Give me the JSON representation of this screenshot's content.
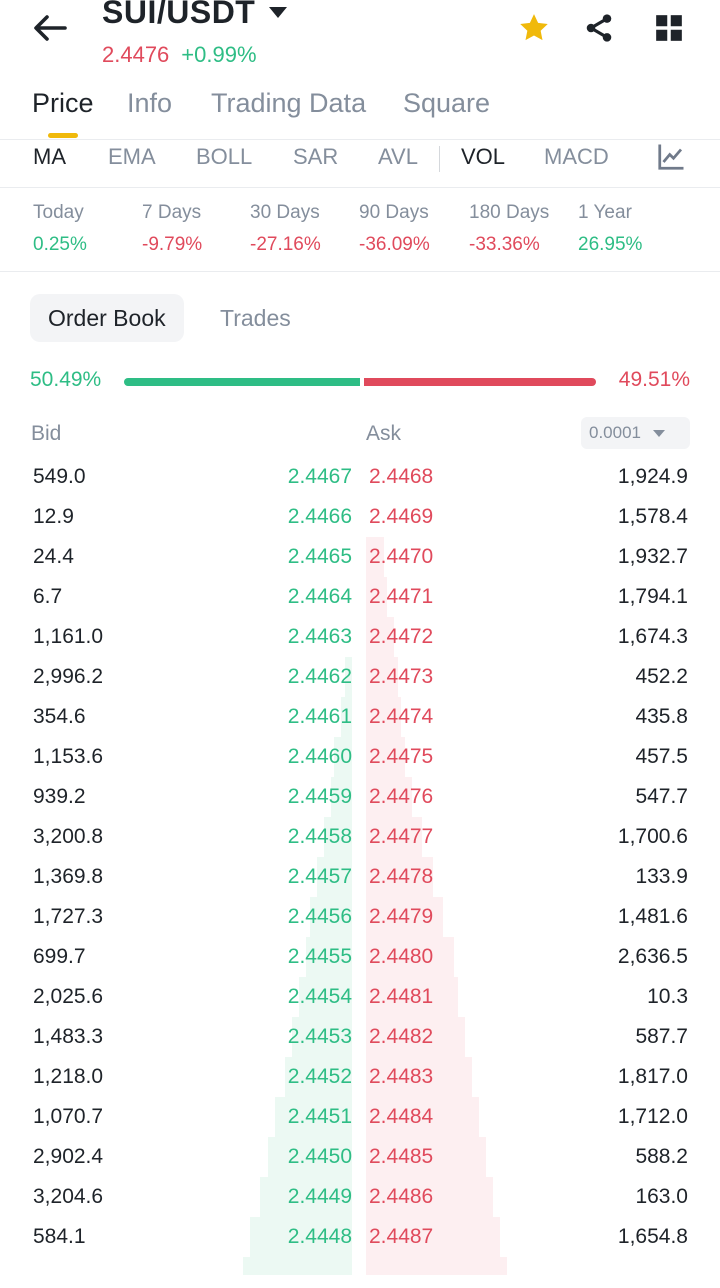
{
  "header": {
    "symbol": "SUI/USDT",
    "last_price": "2.4476",
    "change": "+0.99%",
    "icons": [
      "back-arrow-icon",
      "dropdown-caret-icon",
      "star-icon",
      "share-icon",
      "grid-menu-icon"
    ],
    "colors": {
      "up": "#2ebd85",
      "down": "#e04a5c",
      "accent": "#f0b90b"
    }
  },
  "main_tabs": [
    "Price",
    "Info",
    "Trading Data",
    "Square"
  ],
  "indicators": [
    "MA",
    "EMA",
    "BOLL",
    "SAR",
    "AVL",
    "VOL",
    "MACD"
  ],
  "performance": [
    {
      "label": "Today",
      "value": "0.25%",
      "dir": "up"
    },
    {
      "label": "7 Days",
      "value": "-9.79%",
      "dir": "down"
    },
    {
      "label": "30 Days",
      "value": "-27.16%",
      "dir": "down"
    },
    {
      "label": "90 Days",
      "value": "-36.09%",
      "dir": "down"
    },
    {
      "label": "180 Days",
      "value": "-33.36%",
      "dir": "down"
    },
    {
      "label": "1 Year",
      "value": "26.95%",
      "dir": "up"
    }
  ],
  "sub_tabs": [
    "Order Book",
    "Trades"
  ],
  "ratio": {
    "buy": "50.49%",
    "sell": "49.51%",
    "buy_fraction": 0.5049
  },
  "orderbook": {
    "bid_label": "Bid",
    "ask_label": "Ask",
    "precision": "0.0001",
    "rows": [
      {
        "bid_amount": "549.0",
        "bid_price": "2.4467",
        "ask_price": "2.4468",
        "ask_amount": "1,924.9",
        "bid_depth": 0.0,
        "ask_depth": 0.0
      },
      {
        "bid_amount": "12.9",
        "bid_price": "2.4466",
        "ask_price": "2.4469",
        "ask_amount": "1,578.4",
        "bid_depth": 0.0,
        "ask_depth": 0.0
      },
      {
        "bid_amount": "24.4",
        "bid_price": "2.4465",
        "ask_price": "2.4470",
        "ask_amount": "1,932.7",
        "bid_depth": 0.0,
        "ask_depth": 0.05
      },
      {
        "bid_amount": "6.7",
        "bid_price": "2.4464",
        "ask_price": "2.4471",
        "ask_amount": "1,794.1",
        "bid_depth": 0.0,
        "ask_depth": 0.06
      },
      {
        "bid_amount": "1,161.0",
        "bid_price": "2.4463",
        "ask_price": "2.4472",
        "ask_amount": "1,674.3",
        "bid_depth": 0.0,
        "ask_depth": 0.08
      },
      {
        "bid_amount": "2,996.2",
        "bid_price": "2.4462",
        "ask_price": "2.4473",
        "ask_amount": "452.2",
        "bid_depth": 0.02,
        "ask_depth": 0.09
      },
      {
        "bid_amount": "354.6",
        "bid_price": "2.4461",
        "ask_price": "2.4474",
        "ask_amount": "435.8",
        "bid_depth": 0.03,
        "ask_depth": 0.1
      },
      {
        "bid_amount": "1,153.6",
        "bid_price": "2.4460",
        "ask_price": "2.4475",
        "ask_amount": "457.5",
        "bid_depth": 0.05,
        "ask_depth": 0.11
      },
      {
        "bid_amount": "939.2",
        "bid_price": "2.4459",
        "ask_price": "2.4476",
        "ask_amount": "547.7",
        "bid_depth": 0.06,
        "ask_depth": 0.13
      },
      {
        "bid_amount": "3,200.8",
        "bid_price": "2.4458",
        "ask_price": "2.4477",
        "ask_amount": "1,700.6",
        "bid_depth": 0.08,
        "ask_depth": 0.16
      },
      {
        "bid_amount": "1,369.8",
        "bid_price": "2.4457",
        "ask_price": "2.4478",
        "ask_amount": "133.9",
        "bid_depth": 0.1,
        "ask_depth": 0.19
      },
      {
        "bid_amount": "1,727.3",
        "bid_price": "2.4456",
        "ask_price": "2.4479",
        "ask_amount": "1,481.6",
        "bid_depth": 0.12,
        "ask_depth": 0.22
      },
      {
        "bid_amount": "699.7",
        "bid_price": "2.4455",
        "ask_price": "2.4480",
        "ask_amount": "2,636.5",
        "bid_depth": 0.13,
        "ask_depth": 0.25
      },
      {
        "bid_amount": "2,025.6",
        "bid_price": "2.4454",
        "ask_price": "2.4481",
        "ask_amount": "10.3",
        "bid_depth": 0.15,
        "ask_depth": 0.26
      },
      {
        "bid_amount": "1,483.3",
        "bid_price": "2.4453",
        "ask_price": "2.4482",
        "ask_amount": "587.7",
        "bid_depth": 0.17,
        "ask_depth": 0.28
      },
      {
        "bid_amount": "1,218.0",
        "bid_price": "2.4452",
        "ask_price": "2.4483",
        "ask_amount": "1,817.0",
        "bid_depth": 0.19,
        "ask_depth": 0.3
      },
      {
        "bid_amount": "1,070.7",
        "bid_price": "2.4451",
        "ask_price": "2.4484",
        "ask_amount": "1,712.0",
        "bid_depth": 0.22,
        "ask_depth": 0.32
      },
      {
        "bid_amount": "2,902.4",
        "bid_price": "2.4450",
        "ask_price": "2.4485",
        "ask_amount": "588.2",
        "bid_depth": 0.24,
        "ask_depth": 0.34
      },
      {
        "bid_amount": "3,204.6",
        "bid_price": "2.4449",
        "ask_price": "2.4486",
        "ask_amount": "163.0",
        "bid_depth": 0.26,
        "ask_depth": 0.36
      },
      {
        "bid_amount": "584.1",
        "bid_price": "2.4448",
        "ask_price": "2.4487",
        "ask_amount": "1,654.8",
        "bid_depth": 0.29,
        "ask_depth": 0.38
      },
      {
        "bid_amount": "",
        "bid_price": "",
        "ask_price": "",
        "ask_amount": "",
        "bid_depth": 0.31,
        "ask_depth": 0.4
      }
    ]
  }
}
